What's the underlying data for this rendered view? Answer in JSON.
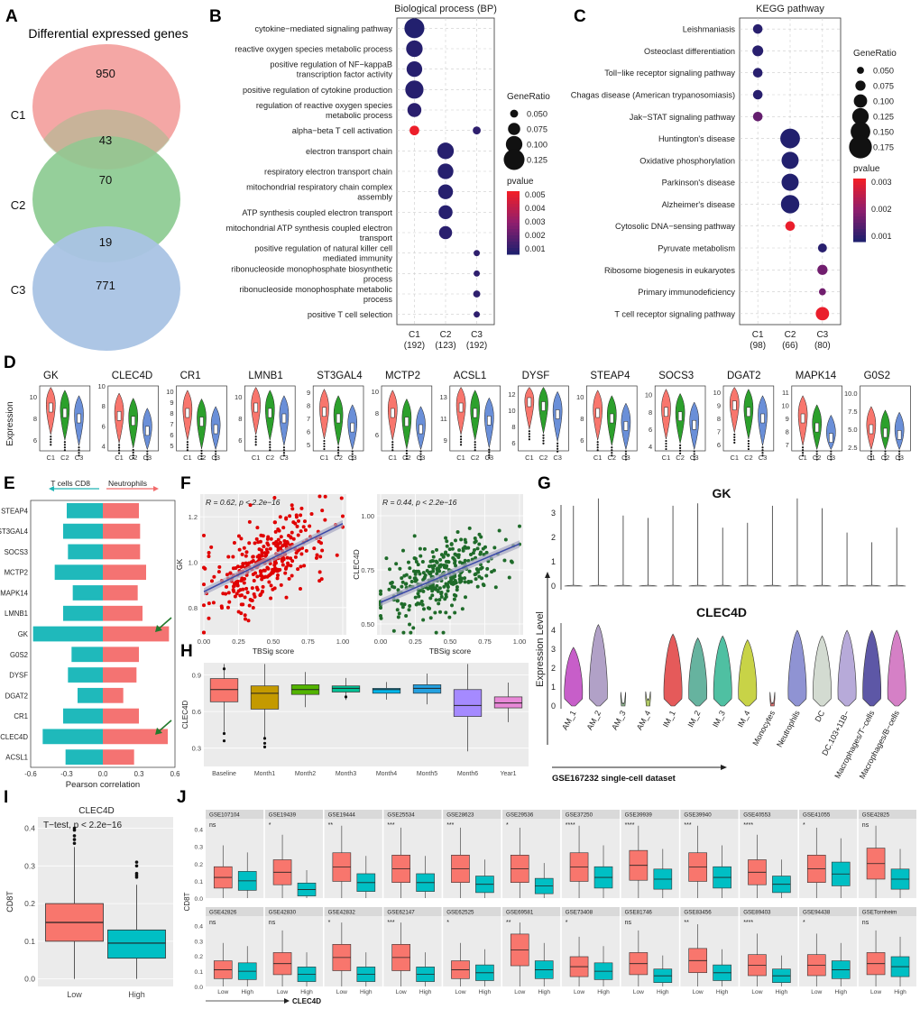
{
  "panels": {
    "A": "A",
    "B": "B",
    "C": "C",
    "D": "D",
    "E": "E",
    "F": "F",
    "G": "G",
    "H": "H",
    "I": "I",
    "J": "J"
  },
  "chart_data": {
    "venn": {
      "type": "venn",
      "title": "Differential expressed genes",
      "sets": [
        "C1",
        "C2",
        "C3"
      ],
      "regions": {
        "c1_only": "950",
        "c1_c2": "43",
        "c2_only": "70",
        "c2_c3": "19",
        "c3_only": "771"
      },
      "colors": [
        "#f4a7a5",
        "#8fcc95",
        "#a9c3e4"
      ]
    },
    "bp": {
      "type": "scatter",
      "title": "Biological process (BP)",
      "terms": [
        "cytokine−mediated signaling pathway",
        "reactive oxygen species metabolic process",
        "positive regulation of NF−kappaB transcription factor activity",
        "positive regulation of cytokine production",
        "regulation of reactive oxygen species metabolic process",
        "alpha−beta T cell activation",
        "electron transport chain",
        "respiratory electron transport chain",
        "mitochondrial respiratory chain complex assembly",
        "ATP synthesis coupled electron transport",
        "mitochondrial ATP synthesis coupled electron transport",
        "positive regulation of natural killer cell mediated immunity",
        "ribonucleoside monophosphate biosynthetic process",
        "ribonucleoside monophosphate metabolic process",
        "positive T cell selection"
      ],
      "clusters": [
        "C1",
        "C2",
        "C3"
      ],
      "counts": [
        "(192)",
        "(123)",
        "(192)"
      ],
      "points": [
        {
          "term": 0,
          "cluster": 0,
          "ratio": 0.12,
          "p": 0.0003
        },
        {
          "term": 1,
          "cluster": 0,
          "ratio": 0.1,
          "p": 0.0004
        },
        {
          "term": 2,
          "cluster": 0,
          "ratio": 0.095,
          "p": 0.0004
        },
        {
          "term": 3,
          "cluster": 0,
          "ratio": 0.11,
          "p": 0.0004
        },
        {
          "term": 4,
          "cluster": 0,
          "ratio": 0.085,
          "p": 0.0005
        },
        {
          "term": 5,
          "cluster": 0,
          "ratio": 0.06,
          "p": 0.0055
        },
        {
          "term": 5,
          "cluster": 2,
          "ratio": 0.05,
          "p": 0.0006
        },
        {
          "term": 6,
          "cluster": 1,
          "ratio": 0.1,
          "p": 0.0004
        },
        {
          "term": 7,
          "cluster": 1,
          "ratio": 0.095,
          "p": 0.0004
        },
        {
          "term": 8,
          "cluster": 1,
          "ratio": 0.09,
          "p": 0.0004
        },
        {
          "term": 9,
          "cluster": 1,
          "ratio": 0.085,
          "p": 0.0004
        },
        {
          "term": 10,
          "cluster": 1,
          "ratio": 0.08,
          "p": 0.0005
        },
        {
          "term": 11,
          "cluster": 2,
          "ratio": 0.04,
          "p": 0.0006
        },
        {
          "term": 12,
          "cluster": 2,
          "ratio": 0.04,
          "p": 0.0006
        },
        {
          "term": 13,
          "cluster": 2,
          "ratio": 0.045,
          "p": 0.0006
        },
        {
          "term": 14,
          "cluster": 2,
          "ratio": 0.04,
          "p": 0.0006
        }
      ],
      "size_legend": {
        "title": "GeneRatio",
        "values": [
          "0.050",
          "0.075",
          "0.100",
          "0.125"
        ]
      },
      "color_legend": {
        "title": "pvalue",
        "ticks": [
          "0.005",
          "0.004",
          "0.003",
          "0.002",
          "0.001"
        ]
      }
    },
    "kegg": {
      "type": "scatter",
      "title": "KEGG pathway",
      "terms": [
        "Leishmaniasis",
        "Osteoclast differentiation",
        "Toll−like receptor signaling pathway",
        "Chagas disease (American trypanosomiasis)",
        "Jak−STAT signaling pathway",
        "Huntington's disease",
        "Oxidative phosphorylation",
        "Parkinson's disease",
        "Alzheimer's disease",
        "Cytosolic DNA−sensing pathway",
        "Pyruvate metabolism",
        "Ribosome biogenesis in eukaryotes",
        "Primary immunodeficiency",
        "T cell receptor signaling pathway"
      ],
      "clusters": [
        "C1",
        "C2",
        "C3"
      ],
      "counts": [
        "(98)",
        "(66)",
        "(80)"
      ],
      "points": [
        {
          "term": 0,
          "cluster": 0,
          "ratio": 0.07,
          "p": 0.0003
        },
        {
          "term": 1,
          "cluster": 0,
          "ratio": 0.08,
          "p": 0.0003
        },
        {
          "term": 2,
          "cluster": 0,
          "ratio": 0.07,
          "p": 0.0003
        },
        {
          "term": 3,
          "cluster": 0,
          "ratio": 0.07,
          "p": 0.0003
        },
        {
          "term": 4,
          "cluster": 0,
          "ratio": 0.07,
          "p": 0.0012
        },
        {
          "term": 5,
          "cluster": 1,
          "ratio": 0.15,
          "p": 0.0002
        },
        {
          "term": 6,
          "cluster": 1,
          "ratio": 0.13,
          "p": 0.0002
        },
        {
          "term": 7,
          "cluster": 1,
          "ratio": 0.13,
          "p": 0.0002
        },
        {
          "term": 8,
          "cluster": 1,
          "ratio": 0.14,
          "p": 0.0002
        },
        {
          "term": 9,
          "cluster": 1,
          "ratio": 0.07,
          "p": 0.0034
        },
        {
          "term": 10,
          "cluster": 2,
          "ratio": 0.065,
          "p": 0.0003
        },
        {
          "term": 11,
          "cluster": 2,
          "ratio": 0.075,
          "p": 0.0014
        },
        {
          "term": 12,
          "cluster": 2,
          "ratio": 0.05,
          "p": 0.0014
        },
        {
          "term": 13,
          "cluster": 2,
          "ratio": 0.1,
          "p": 0.0034
        }
      ],
      "size_legend": {
        "title": "GeneRatio",
        "values": [
          "0.050",
          "0.075",
          "0.100",
          "0.125",
          "0.150",
          "0.175"
        ]
      },
      "color_legend": {
        "title": "pvalue",
        "ticks": [
          "0.003",
          "0.002",
          "0.001"
        ]
      }
    },
    "violins": {
      "type": "violin",
      "ylabel": "Expression",
      "groups": [
        "C1",
        "C2",
        "C3"
      ],
      "colors": [
        "#f8766d",
        "#2ca02c",
        "#6a8fd8"
      ],
      "genes": [
        {
          "name": "GK",
          "ticks": [
            "10",
            "8",
            "6"
          ],
          "ylim": [
            5,
            11
          ],
          "med": [
            9,
            8.5,
            8
          ]
        },
        {
          "name": "CLEC4D",
          "ticks": [
            "10",
            "8",
            "6",
            "4"
          ],
          "ylim": [
            3.5,
            10
          ],
          "med": [
            7,
            6.5,
            5.5
          ]
        },
        {
          "name": "CR1",
          "ticks": [
            "10",
            "9",
            "8",
            "7",
            "6",
            "5"
          ],
          "ylim": [
            4.5,
            10.5
          ],
          "med": [
            8,
            7.2,
            6.5
          ]
        },
        {
          "name": "LMNB1",
          "ticks": [
            "10",
            "8",
            "6"
          ],
          "ylim": [
            5,
            11
          ],
          "med": [
            9,
            8.5,
            8
          ]
        },
        {
          "name": "ST3GAL4",
          "ticks": [
            "9",
            "8",
            "7",
            "6",
            "5"
          ],
          "ylim": [
            4.5,
            9.5
          ],
          "med": [
            7.5,
            7,
            6.3
          ]
        },
        {
          "name": "MCTP2",
          "ticks": [
            "10",
            "8",
            "6"
          ],
          "ylim": [
            4.5,
            10.5
          ],
          "med": [
            8,
            7.2,
            6.5
          ]
        },
        {
          "name": "ACSL1",
          "ticks": [
            "13",
            "11",
            "9"
          ],
          "ylim": [
            8,
            14
          ],
          "med": [
            12,
            11.5,
            10.8
          ]
        },
        {
          "name": "DYSF",
          "ticks": [
            "12",
            "10",
            "8",
            "6"
          ],
          "ylim": [
            5,
            13
          ],
          "med": [
            11,
            10.5,
            9.5
          ]
        },
        {
          "name": "STEAP4",
          "ticks": [
            "10",
            "8",
            "6"
          ],
          "ylim": [
            5,
            11
          ],
          "med": [
            8.5,
            8,
            7.3
          ]
        },
        {
          "name": "SOCS3",
          "ticks": [
            "10",
            "8",
            "6",
            "4"
          ],
          "ylim": [
            3.5,
            11
          ],
          "med": [
            8,
            7.5,
            6.5
          ]
        },
        {
          "name": "DGAT2",
          "ticks": [
            "10",
            "9",
            "8",
            "7",
            "6"
          ],
          "ylim": [
            5.5,
            10.5
          ],
          "med": [
            9,
            8.5,
            8
          ]
        },
        {
          "name": "MAPK14",
          "ticks": [
            "11",
            "10",
            "9",
            "8",
            "7"
          ],
          "ylim": [
            6.5,
            11.5
          ],
          "med": [
            9,
            8.3,
            7.5
          ]
        },
        {
          "name": "G0S2",
          "ticks": [
            "10.0",
            "7.5",
            "5.0",
            "2.5"
          ],
          "ylim": [
            2,
            11
          ],
          "med": [
            5,
            4.5,
            4.2
          ]
        }
      ]
    },
    "corr": {
      "type": "bar",
      "genes": [
        "STEAP4",
        "ST3GAL4",
        "SOCS3",
        "MCTP2",
        "MAPK14",
        "LMNB1",
        "GK",
        "G0S2",
        "DYSF",
        "DGAT2",
        "CR1",
        "CLEC4D",
        "ACSL1"
      ],
      "cd8": [
        -0.3,
        -0.33,
        -0.29,
        -0.4,
        -0.25,
        -0.33,
        -0.58,
        -0.26,
        -0.29,
        -0.21,
        -0.33,
        -0.5,
        -0.31
      ],
      "neut": [
        0.3,
        0.31,
        0.31,
        0.36,
        0.29,
        0.33,
        0.55,
        0.3,
        0.28,
        0.17,
        0.3,
        0.54,
        0.26
      ],
      "legend_left": "T cells CD8",
      "legend_right": "Neutrophils",
      "xlabel": "Pearson correlation",
      "xticks": [
        "-0.6",
        "-0.3",
        "0.0",
        "0.3",
        "0.6"
      ],
      "xlim": [
        -0.6,
        0.6
      ]
    },
    "scatter_gk": {
      "type": "scatter",
      "annot": "R = 0.62, p < 2.2e−16",
      "ylabel": "GK",
      "xlabel": "TBSig score",
      "yticks": [
        "1.2",
        "1.0",
        "0.8"
      ],
      "xticks": [
        "0.00",
        "0.25",
        "0.50",
        "0.75",
        "1.00"
      ],
      "color": "#e00000",
      "slope": 0.3,
      "intercept": 0.87,
      "ylim": [
        0.68,
        1.3
      ]
    },
    "scatter_clec": {
      "type": "scatter",
      "annot": "R = 0.44, p < 2.2e−16",
      "ylabel": "CLEC4D",
      "xlabel": "TBSig score",
      "yticks": [
        "1.00",
        "0.75",
        "0.50"
      ],
      "xticks": [
        "0.00",
        "0.25",
        "0.50",
        "0.75",
        "1.00"
      ],
      "color": "#1f6b2a",
      "slope": 0.27,
      "intercept": 0.6,
      "ylim": [
        0.45,
        1.1
      ]
    },
    "sc": {
      "type": "violin",
      "top_title": "GK",
      "bottom_title": "CLEC4D",
      "ylabel": "Expression Level",
      "xlabel": "GSE167232 single-cell dataset",
      "cells": [
        "AM_1",
        "AM_2",
        "AM_3",
        "AM_4",
        "IM_1",
        "IM_2",
        "IM_3",
        "IM_4",
        "Monocytes",
        "Neutrophils",
        "DC",
        "DC.103+11B−",
        "Macrophages/T−cells",
        "Macrophages/B−cells"
      ],
      "top_ticks": [
        "3",
        "2",
        "1",
        "0"
      ],
      "bottom_ticks": [
        "4",
        "3",
        "2",
        "1",
        "0"
      ],
      "top_max": [
        3.3,
        3.6,
        2.9,
        2.8,
        3.3,
        3.4,
        2.4,
        2.6,
        3.3,
        3.6,
        3.2,
        2.2,
        1.8,
        2.4
      ],
      "bottom_max": [
        3.1,
        4.3,
        0.2,
        0.4,
        3.8,
        3.6,
        3.7,
        3.5,
        0.2,
        4.0,
        3.7,
        4.0,
        4.0,
        4.0
      ],
      "colors": [
        "#c75ec9",
        "#b1a1c7",
        "#8fb58f",
        "#b0c965",
        "#e55a5a",
        "#66b39f",
        "#4fc0a2",
        "#c8d347",
        "#e07070",
        "#8f93d3",
        "#d3dbd1",
        "#b7aad9",
        "#5d57a6",
        "#d580c6"
      ]
    },
    "months": {
      "type": "box",
      "ylabel": "CLEC4D",
      "categories": [
        "Baseline",
        "Month1",
        "Month2",
        "Month3",
        "Month4",
        "Month5",
        "Month6",
        "Year1"
      ],
      "yticks": [
        "0.9",
        "0.6",
        "0.3"
      ],
      "ylim": [
        0.15,
        1.0
      ],
      "colors": [
        "#f8766d",
        "#c49a00",
        "#53b400",
        "#00c094",
        "#00b6eb",
        "#24a1e0",
        "#a58aff",
        "#e888d7"
      ],
      "q": [
        [
          0.68,
          0.78,
          0.87
        ],
        [
          0.62,
          0.75,
          0.81
        ],
        [
          0.74,
          0.78,
          0.82
        ],
        [
          0.76,
          0.79,
          0.81
        ],
        [
          0.75,
          0.78,
          0.79
        ],
        [
          0.75,
          0.79,
          0.82
        ],
        [
          0.56,
          0.65,
          0.78
        ],
        [
          0.63,
          0.67,
          0.72
        ]
      ]
    },
    "cd8box": {
      "type": "box",
      "title": "CLEC4D",
      "annot": "T−test, p < 2.2e−16",
      "ylabel": "CD8T",
      "categories": [
        "Low",
        "High"
      ],
      "yticks": [
        "0.4",
        "0.3",
        "0.2",
        "0.1",
        "0.0"
      ],
      "ylim": [
        -0.02,
        0.43
      ],
      "q": [
        [
          0.1,
          0.15,
          0.2
        ],
        [
          0.055,
          0.095,
          0.13
        ]
      ],
      "whisk": [
        [
          0.0,
          0.35
        ],
        [
          0.0,
          0.25
        ]
      ],
      "colors": [
        "#f8766d",
        "#00bfc4"
      ]
    },
    "gse": {
      "type": "box",
      "ylabel": "CD8T",
      "xlabel": "CLEC4D",
      "yticks": [
        "0.4",
        "0.3",
        "0.2",
        "0.1",
        "0.0"
      ],
      "categories": [
        "Low",
        "High"
      ],
      "row1": [
        {
          "name": "GSE107104",
          "sig": "ns"
        },
        {
          "name": "GSE19439",
          "sig": "*"
        },
        {
          "name": "GSE19444",
          "sig": "**"
        },
        {
          "name": "GSE25534",
          "sig": "***"
        },
        {
          "name": "GSE28623",
          "sig": "***"
        },
        {
          "name": "GSE29536",
          "sig": "*"
        },
        {
          "name": "GSE37250",
          "sig": "****"
        },
        {
          "name": "GSE39939",
          "sig": "****"
        },
        {
          "name": "GSE39940",
          "sig": "***"
        },
        {
          "name": "GSE40553",
          "sig": "****"
        },
        {
          "name": "GSE41055",
          "sig": "*"
        },
        {
          "name": "GSE42825",
          "sig": "ns"
        }
      ],
      "row2": [
        {
          "name": "GSE42826",
          "sig": "ns"
        },
        {
          "name": "GSE42830",
          "sig": "ns"
        },
        {
          "name": "GSE42832",
          "sig": "*"
        },
        {
          "name": "GSE62147",
          "sig": "***"
        },
        {
          "name": "GSE62525",
          "sig": "*"
        },
        {
          "name": "GSE69581",
          "sig": "**"
        },
        {
          "name": "GSE73408",
          "sig": "*"
        },
        {
          "name": "GSE81746",
          "sig": "ns"
        },
        {
          "name": "GSE83456",
          "sig": "**"
        },
        {
          "name": "GSE89403",
          "sig": "****"
        },
        {
          "name": "GSE94438",
          "sig": "*"
        },
        {
          "name": "GSETornheim",
          "sig": "ns"
        }
      ],
      "low_med": [
        0.12,
        0.15,
        0.18,
        0.17,
        0.17,
        0.17,
        0.18,
        0.19,
        0.18,
        0.15,
        0.17,
        0.2,
        0.11,
        0.15,
        0.19,
        0.19,
        0.11,
        0.24,
        0.13,
        0.15,
        0.17,
        0.14,
        0.14,
        0.15
      ],
      "high_med": [
        0.1,
        0.05,
        0.09,
        0.09,
        0.08,
        0.07,
        0.12,
        0.11,
        0.12,
        0.08,
        0.14,
        0.11,
        0.1,
        0.08,
        0.08,
        0.08,
        0.09,
        0.11,
        0.1,
        0.07,
        0.09,
        0.07,
        0.11,
        0.13
      ]
    }
  }
}
